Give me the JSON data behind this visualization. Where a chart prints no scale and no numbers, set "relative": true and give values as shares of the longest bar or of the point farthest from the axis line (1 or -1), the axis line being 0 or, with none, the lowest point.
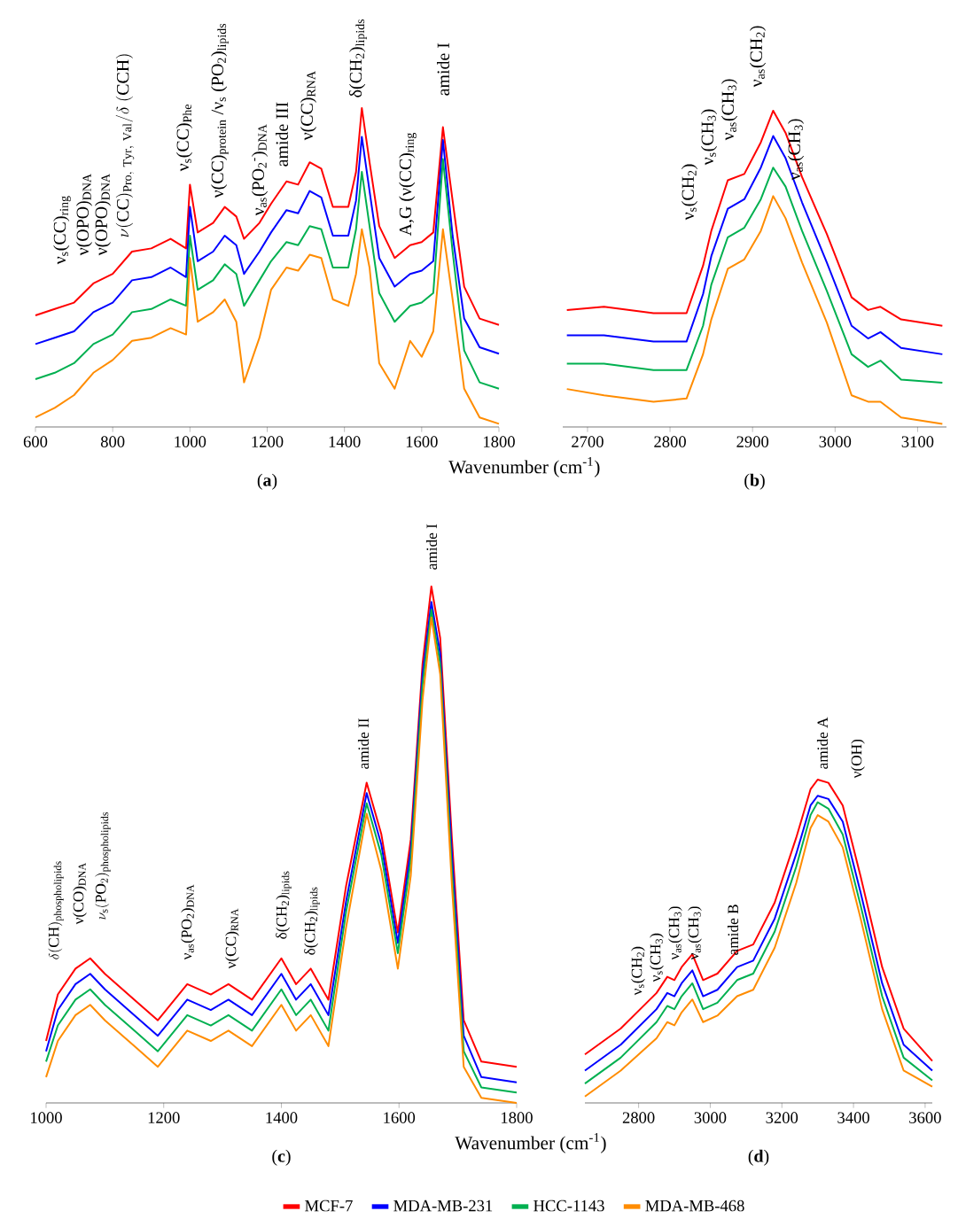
{
  "chart_data": [
    {
      "type": "line",
      "title": "(**a**)",
      "xlabel": "Wavenumber (cm$^{-1}$)",
      "relative": true,
      "x": [
        600,
        650,
        700,
        750,
        800,
        850,
        900,
        950,
        990,
        1000,
        1020,
        1060,
        1090,
        1120,
        1140,
        1180,
        1210,
        1250,
        1280,
        1310,
        1340,
        1370,
        1410,
        1430,
        1445,
        1465,
        1490,
        1530,
        1570,
        1600,
        1630,
        1655,
        1680,
        1710,
        1750,
        1800
      ],
      "xlim": [
        600,
        1800
      ],
      "xticks": [
        600,
        800,
        1000,
        1200,
        1400,
        1600,
        1800
      ],
      "series": [
        {
          "color": "#ff0000",
          "values": [
            0.35,
            0.37,
            0.39,
            0.45,
            0.48,
            0.55,
            0.56,
            0.59,
            0.56,
            0.76,
            0.61,
            0.64,
            0.69,
            0.66,
            0.59,
            0.64,
            0.7,
            0.77,
            0.76,
            0.83,
            0.81,
            0.69,
            0.69,
            0.8,
            1.0,
            0.83,
            0.63,
            0.53,
            0.57,
            0.58,
            0.61,
            0.94,
            0.71,
            0.44,
            0.34,
            0.32
          ]
        },
        {
          "color": "#0000ff",
          "values": [
            0.26,
            0.28,
            0.3,
            0.36,
            0.39,
            0.46,
            0.47,
            0.5,
            0.47,
            0.69,
            0.52,
            0.55,
            0.6,
            0.57,
            0.48,
            0.55,
            0.61,
            0.68,
            0.67,
            0.74,
            0.72,
            0.6,
            0.6,
            0.71,
            0.91,
            0.74,
            0.53,
            0.44,
            0.48,
            0.49,
            0.52,
            0.9,
            0.6,
            0.34,
            0.25,
            0.23
          ]
        },
        {
          "color": "#00b050",
          "values": [
            0.15,
            0.17,
            0.2,
            0.26,
            0.29,
            0.36,
            0.37,
            0.4,
            0.38,
            0.6,
            0.43,
            0.46,
            0.51,
            0.48,
            0.38,
            0.46,
            0.52,
            0.58,
            0.57,
            0.63,
            0.62,
            0.5,
            0.5,
            0.62,
            0.8,
            0.63,
            0.42,
            0.33,
            0.38,
            0.39,
            0.42,
            0.84,
            0.55,
            0.24,
            0.14,
            0.12
          ]
        },
        {
          "color": "#ff8c00",
          "values": [
            0.03,
            0.06,
            0.1,
            0.17,
            0.21,
            0.27,
            0.28,
            0.31,
            0.29,
            0.53,
            0.33,
            0.36,
            0.4,
            0.33,
            0.14,
            0.28,
            0.43,
            0.5,
            0.49,
            0.54,
            0.53,
            0.4,
            0.38,
            0.48,
            0.62,
            0.5,
            0.2,
            0.12,
            0.27,
            0.22,
            0.3,
            0.62,
            0.4,
            0.12,
            0.03,
            0.01
          ]
        }
      ],
      "annotations": [
        "ν$_{s}$(CC)$_{ring}$",
        "ν(OPO)$_{DNA}$",
        "ν(OPO)$_{DNA}$",
        "\\nu(\\mathrm{CC})_{\\mathrm{Pro,\\ Tyr,\\ Val}}/\\delta\\ (\\mathrm{CCH})",
        "ν$_{s}$(CC)$_{Phe}$",
        "ν(CC)$_{protein}$ /ν$_{s}$ (PO$_{2}$)$_{lipids}$",
        "ν$_{as}$(PO$_{2}$$^{-}$)$_{DNA}$",
        "amide III",
        "ν(CC)$_{RNA}$",
        "δ(CH$_{2}$)$_{lipids}$",
        "A,G (ν(CC)$_{ring}$",
        "amide I"
      ]
    },
    {
      "type": "line",
      "title": "(**b**)",
      "relative": true,
      "x": [
        2675,
        2720,
        2780,
        2820,
        2840,
        2850,
        2870,
        2890,
        2910,
        2925,
        2940,
        2960,
        2990,
        3020,
        3040,
        3055,
        3080,
        3130
      ],
      "xlim": [
        2670,
        3135
      ],
      "xticks": [
        2700,
        2800,
        2900,
        3000,
        3100
      ],
      "series": [
        {
          "color": "#ff0000",
          "values": [
            0.37,
            0.38,
            0.36,
            0.36,
            0.51,
            0.62,
            0.78,
            0.8,
            0.9,
            1.0,
            0.93,
            0.79,
            0.61,
            0.41,
            0.37,
            0.38,
            0.34,
            0.32
          ]
        },
        {
          "color": "#0000ff",
          "values": [
            0.29,
            0.29,
            0.27,
            0.27,
            0.42,
            0.54,
            0.69,
            0.72,
            0.82,
            0.92,
            0.85,
            0.71,
            0.52,
            0.32,
            0.28,
            0.3,
            0.25,
            0.23
          ]
        },
        {
          "color": "#00b050",
          "values": [
            0.2,
            0.2,
            0.18,
            0.18,
            0.32,
            0.45,
            0.6,
            0.63,
            0.72,
            0.82,
            0.76,
            0.62,
            0.43,
            0.23,
            0.19,
            0.21,
            0.15,
            0.14
          ]
        },
        {
          "color": "#ff8c00",
          "values": [
            0.12,
            0.1,
            0.08,
            0.09,
            0.23,
            0.34,
            0.5,
            0.53,
            0.62,
            0.73,
            0.66,
            0.52,
            0.33,
            0.1,
            0.08,
            0.08,
            0.03,
            0.01
          ]
        }
      ],
      "annotations": [
        "ν$_{s}$(CH$_{2}$)",
        "ν$_{s}$(CH$_{3}$)",
        "ν$_{as}$(CH$_{3}$)",
        "ν$_{as}$(CH$_{2}$)",
        "ν$_{as}$(CH$_{3}$)"
      ]
    },
    {
      "type": "line",
      "title": "(**c**)",
      "xlabel": "Wavenumber (cm$^{-1}$)",
      "relative": true,
      "x": [
        1000,
        1020,
        1050,
        1075,
        1100,
        1150,
        1190,
        1240,
        1280,
        1310,
        1350,
        1400,
        1425,
        1450,
        1480,
        1510,
        1545,
        1570,
        1598,
        1620,
        1640,
        1655,
        1670,
        1690,
        1710,
        1740,
        1800
      ],
      "xlim": [
        1000,
        1800
      ],
      "xticks": [
        1000,
        1200,
        1400,
        1600,
        1800
      ],
      "series": [
        {
          "color": "#ff0000",
          "values": [
            0.12,
            0.21,
            0.26,
            0.28,
            0.25,
            0.2,
            0.16,
            0.23,
            0.21,
            0.23,
            0.2,
            0.28,
            0.23,
            0.26,
            0.2,
            0.42,
            0.62,
            0.52,
            0.33,
            0.51,
            0.85,
            1.0,
            0.9,
            0.51,
            0.16,
            0.08,
            0.07
          ]
        },
        {
          "color": "#0000ff",
          "values": [
            0.1,
            0.18,
            0.23,
            0.25,
            0.22,
            0.17,
            0.13,
            0.2,
            0.18,
            0.2,
            0.17,
            0.25,
            0.2,
            0.23,
            0.17,
            0.39,
            0.6,
            0.5,
            0.31,
            0.49,
            0.83,
            0.97,
            0.87,
            0.48,
            0.13,
            0.05,
            0.04
          ]
        },
        {
          "color": "#00b050",
          "values": [
            0.08,
            0.15,
            0.2,
            0.22,
            0.19,
            0.14,
            0.1,
            0.17,
            0.15,
            0.17,
            0.14,
            0.22,
            0.17,
            0.2,
            0.14,
            0.37,
            0.58,
            0.48,
            0.29,
            0.47,
            0.81,
            0.955,
            0.85,
            0.45,
            0.1,
            0.03,
            0.02
          ]
        },
        {
          "color": "#ff8c00",
          "values": [
            0.05,
            0.12,
            0.17,
            0.19,
            0.16,
            0.11,
            0.07,
            0.14,
            0.12,
            0.14,
            0.11,
            0.19,
            0.14,
            0.17,
            0.11,
            0.34,
            0.56,
            0.45,
            0.26,
            0.44,
            0.78,
            0.94,
            0.83,
            0.42,
            0.07,
            0.01,
            0.0
          ]
        }
      ],
      "annotations": [
        "\\delta(\\mathrm{CH})_{\\mathrm{phospholipids}}",
        "ν(CO)$_{DNA}$",
        "\\nu_{\\mathrm{s}}(\\mathrm{PO}_{2})_{\\mathrm{phospholipids}}",
        "ν$_{as}$(PO$_{2}$)$_{DNA}$",
        "ν(CC)$_{RNA}$",
        "δ(CH$_{2}$)$_{lipids}$",
        "δ(CH$_{2}$)$_{lipids}$",
        "amide II",
        "amide I"
      ]
    },
    {
      "type": "line",
      "title": "(**d**)",
      "relative": true,
      "legend": "bottom",
      "x": [
        2650,
        2750,
        2850,
        2880,
        2900,
        2920,
        2950,
        2980,
        3020,
        3075,
        3120,
        3180,
        3240,
        3280,
        3300,
        3330,
        3370,
        3420,
        3480,
        3540,
        3620
      ],
      "xlim": [
        2650,
        3620
      ],
      "xticks": [
        2800,
        3000,
        3200,
        3400,
        3600
      ],
      "series": [
        {
          "name": "MCF-7",
          "color": "#ff0000",
          "values": [
            0.15,
            0.23,
            0.34,
            0.39,
            0.38,
            0.42,
            0.46,
            0.38,
            0.4,
            0.47,
            0.49,
            0.62,
            0.82,
            0.97,
            1.0,
            0.99,
            0.92,
            0.7,
            0.42,
            0.23,
            0.13
          ]
        },
        {
          "name": "MDA-MB-231",
          "color": "#0000ff",
          "values": [
            0.1,
            0.18,
            0.29,
            0.34,
            0.33,
            0.37,
            0.41,
            0.33,
            0.35,
            0.42,
            0.44,
            0.57,
            0.77,
            0.92,
            0.95,
            0.94,
            0.87,
            0.65,
            0.37,
            0.18,
            0.1
          ]
        },
        {
          "name": "HCC-1143",
          "color": "#00b050",
          "values": [
            0.06,
            0.14,
            0.25,
            0.3,
            0.29,
            0.33,
            0.37,
            0.29,
            0.31,
            0.38,
            0.4,
            0.53,
            0.73,
            0.89,
            0.93,
            0.91,
            0.83,
            0.61,
            0.33,
            0.14,
            0.07
          ]
        },
        {
          "name": "MDA-MB-468",
          "color": "#ff8c00",
          "values": [
            0.02,
            0.1,
            0.2,
            0.25,
            0.24,
            0.28,
            0.32,
            0.25,
            0.27,
            0.33,
            0.35,
            0.48,
            0.68,
            0.85,
            0.89,
            0.87,
            0.79,
            0.57,
            0.29,
            0.1,
            0.05
          ]
        }
      ],
      "annotations": [
        "ν$_{s}$(CH$_{2}$)",
        "ν$_{s}$(CH$_{3}$)",
        "ν$_{as}$(CH$_{3}$)",
        "ν$_{as}$(CH$_{3}$)",
        "amide B",
        "amide A",
        "ν(OH)"
      ]
    }
  ]
}
